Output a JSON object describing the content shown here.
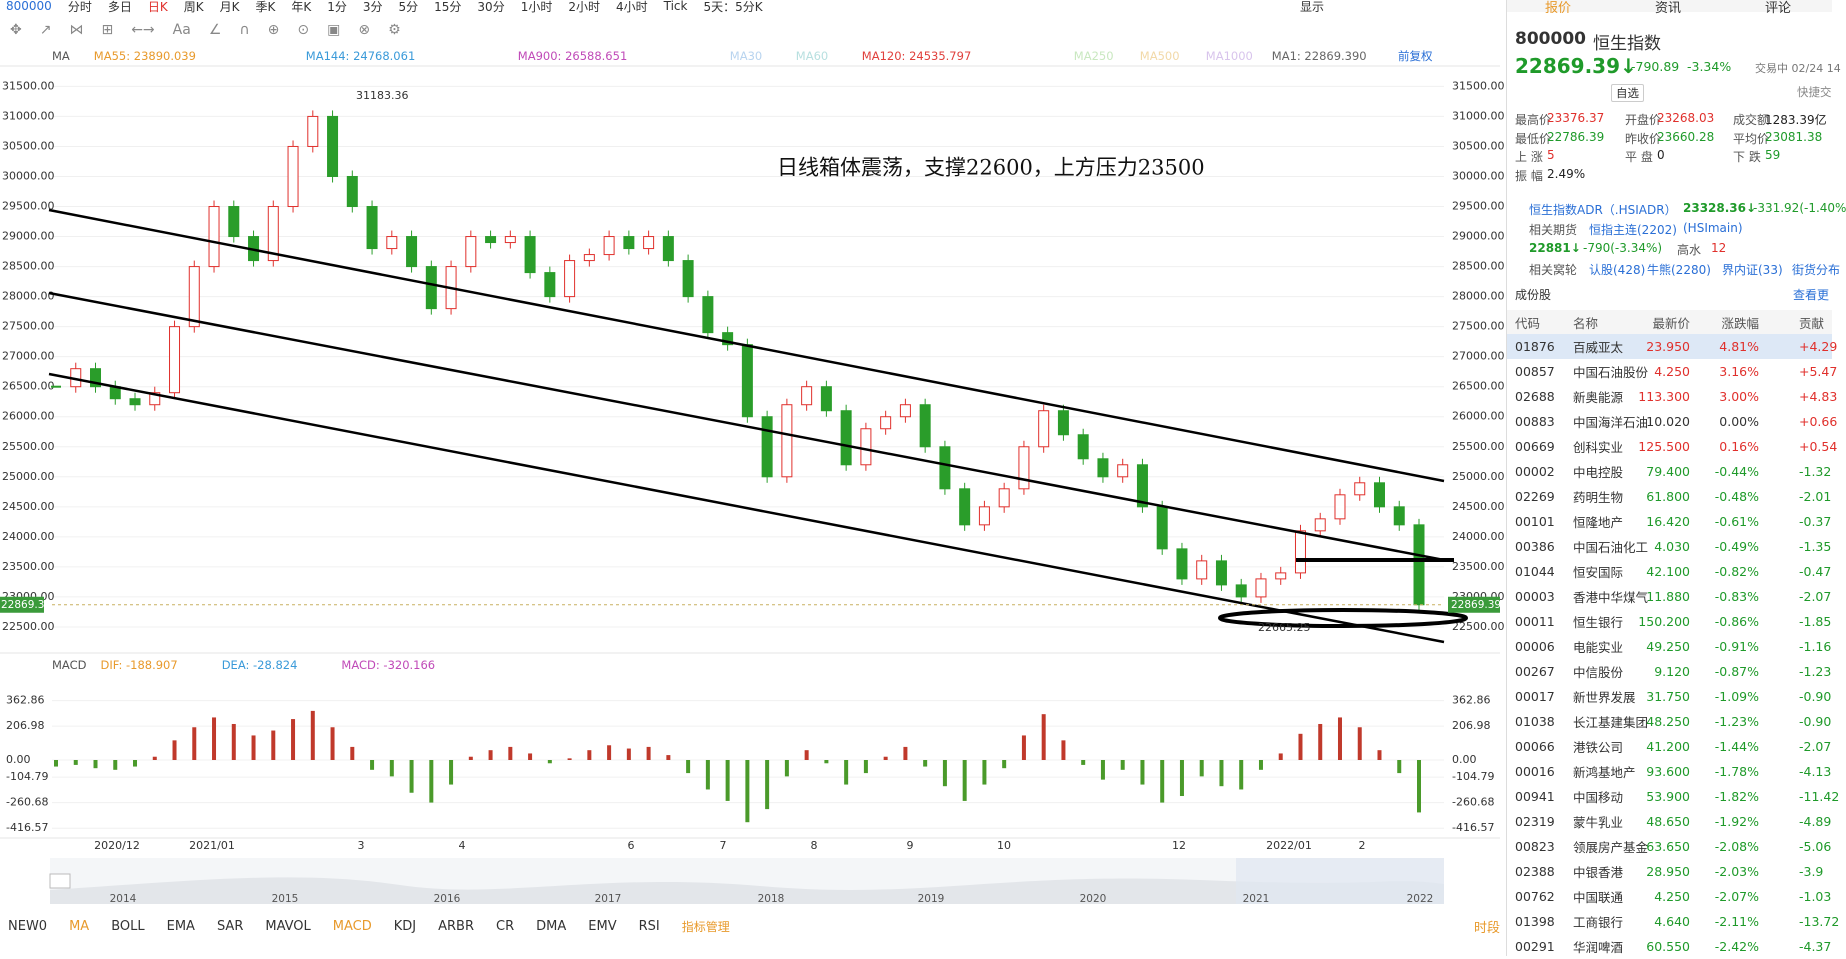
{
  "toolbar": {
    "code": "800000",
    "periods": [
      "分时",
      "多日",
      "日K",
      "周K",
      "月K",
      "季K",
      "年K",
      "1分",
      "3分",
      "5分",
      "15分",
      "30分",
      "1小时",
      "2小时",
      "4小时",
      "Tick",
      "5天：5分K"
    ],
    "active": "日K",
    "display": "显示"
  },
  "ma_legend": {
    "label": "MA",
    "items": [
      {
        "text": "MA55: 23890.039",
        "color": "#e89a2c"
      },
      {
        "text": "MA144: 24768.061",
        "color": "#3a9ad9"
      },
      {
        "text": "MA900: 26588.651",
        "color": "#c04ab8"
      },
      {
        "text": "MA30",
        "color": "#b8d4ef"
      },
      {
        "text": "MA60",
        "color": "#b8e0e0"
      },
      {
        "text": "MA120: 24535.797",
        "color": "#e0403c"
      },
      {
        "text": "MA250",
        "color": "#c9e8c0"
      },
      {
        "text": "MA500",
        "color": "#f2d9a8"
      },
      {
        "text": "MA1000",
        "color": "#d8c4ec"
      },
      {
        "text": "MA1: 22869.390",
        "color": "#666666"
      }
    ],
    "adjust": "前复权"
  },
  "price_chart": {
    "yticks": [
      {
        "value": 31500,
        "label": "31500.00"
      },
      {
        "value": 31000,
        "label": "31000.00"
      },
      {
        "value": 30500,
        "label": "30500.00"
      },
      {
        "value": 30000,
        "label": "30000.00"
      },
      {
        "value": 29500,
        "label": "29500.00"
      },
      {
        "value": 29000,
        "label": "29000.00"
      },
      {
        "value": 28500,
        "label": "28500.00"
      },
      {
        "value": 28000,
        "label": "28000.00"
      },
      {
        "value": 27500,
        "label": "27500.00"
      },
      {
        "value": 27000,
        "label": "27000.00"
      },
      {
        "value": 26500,
        "label": "26500.00"
      },
      {
        "value": 26000,
        "label": "26000.00"
      },
      {
        "value": 25500,
        "label": "25500.00"
      },
      {
        "value": 25000,
        "label": "25000.00"
      },
      {
        "value": 24500,
        "label": "24500.00"
      },
      {
        "value": 24000,
        "label": "24000.00"
      },
      {
        "value": 23500,
        "label": "23500.00"
      },
      {
        "value": 23000,
        "label": "23000.00"
      },
      {
        "value": 22500,
        "label": "22500.00"
      }
    ],
    "closes": [
      26500,
      26800,
      26500,
      26300,
      26200,
      26400,
      27500,
      28500,
      29500,
      29000,
      28600,
      29500,
      30500,
      31000,
      30000,
      29500,
      28800,
      29000,
      28500,
      27800,
      28500,
      29000,
      28900,
      29000,
      28400,
      28000,
      28600,
      28700,
      29000,
      28800,
      29000,
      28600,
      28000,
      27400,
      27200,
      26000,
      25000,
      26200,
      26500,
      26100,
      25200,
      25800,
      26000,
      26200,
      25500,
      24800,
      24200,
      24500,
      24800,
      25500,
      26100,
      25700,
      25300,
      25000,
      25200,
      24500,
      23800,
      23300,
      23600,
      23200,
      23000,
      23300,
      23400,
      24100,
      24300,
      24700,
      24900,
      24500,
      24200,
      22869.39
    ],
    "current_price": 22869.39,
    "high_label": 31183.36,
    "low_label": 22665.25,
    "annotation": "日线箱体震荡，支撑22600，上方压力23500",
    "x_labels": [
      "2020/12",
      "2021/01",
      "3",
      "4",
      "6",
      "7",
      "8",
      "9",
      "10",
      "12",
      "2022/01",
      "2"
    ]
  },
  "macd": {
    "label": "MACD",
    "items": [
      {
        "text": "DIF: -188.907",
        "color": "#e89a2c"
      },
      {
        "text": "DEA: -28.824",
        "color": "#3a9ad9"
      },
      {
        "text": "MACD: -320.166",
        "color": "#c04ab8"
      }
    ],
    "yticks": [
      362.86,
      206.98,
      {
        "value": 0,
        "label": "0.00"
      },
      -104.79,
      -260.68,
      -416.57
    ],
    "hist": [
      -40,
      -30,
      -50,
      -60,
      -40,
      20,
      120,
      200,
      260,
      220,
      150,
      180,
      250,
      300,
      200,
      80,
      -60,
      -100,
      -200,
      -260,
      -150,
      20,
      60,
      80,
      40,
      -20,
      10,
      60,
      90,
      70,
      80,
      30,
      -80,
      -180,
      -250,
      -380,
      -300,
      -100,
      60,
      -20,
      -150,
      -80,
      20,
      80,
      -40,
      -160,
      -250,
      -150,
      -50,
      150,
      280,
      120,
      -30,
      -120,
      -60,
      -150,
      -260,
      -220,
      -100,
      -160,
      -180,
      -60,
      40,
      160,
      220,
      260,
      200,
      60,
      -80,
      -320.166
    ]
  },
  "overview_years": [
    "2014",
    "2015",
    "2016",
    "2017",
    "2018",
    "2019",
    "2020",
    "2021",
    "2022"
  ],
  "indicator_tabs": [
    "NEW0",
    "MA",
    "BOLL",
    "EMA",
    "SAR",
    "MAVOL",
    "MACD",
    "KDJ",
    "ARBR",
    "CR",
    "DMA",
    "EMV",
    "RSI",
    "指标管理"
  ],
  "active_tabs": [
    "MA",
    "MACD"
  ],
  "period_button": "时段",
  "quote": {
    "tabs": [
      "报价",
      "资讯",
      "评论"
    ],
    "code": "800000",
    "name": "恒生指数",
    "price": "22869.39↓",
    "change": "-790.89",
    "change_pct": "-3.34%",
    "status": "交易中 02/24 14",
    "watch": "自选",
    "quick": "快捷交",
    "stats": [
      [
        "最高价",
        "23376.37",
        "开盘价",
        "23268.03",
        "成交额",
        "1283.39亿"
      ],
      [
        "最低价",
        "22786.39",
        "昨收价",
        "23660.28",
        "平均价",
        "23081.38"
      ],
      [
        "上 涨",
        "5",
        "平 盘",
        "0",
        "下 跌",
        "59"
      ],
      [
        "振 幅",
        "2.49%"
      ]
    ],
    "adr": {
      "label": "恒生指数ADR（.HSIADR）",
      "price": "23328.36↓",
      "change": "-331.92(-1.40%"
    },
    "futures": {
      "label": "相关期货",
      "name": "恒指主连(2202)",
      "code": "(HSImain)",
      "price": "22881↓",
      "change": "-790(-3.34%)",
      "premium_label": "高水",
      "premium": "12"
    },
    "warrants": {
      "label": "相关窝轮",
      "items": [
        "认股(428)",
        "牛熊(2280)",
        "界内证(33)",
        "街货分布"
      ]
    }
  },
  "constituents": {
    "title": "成份股",
    "more": "查看更",
    "columns": [
      "代码",
      "名称",
      "最新价",
      "涨跌幅",
      "贡献"
    ],
    "rows": [
      [
        "01876",
        "百威亚太",
        "23.950",
        "4.81%",
        "+4.29"
      ],
      [
        "00857",
        "中国石油股份",
        "4.250",
        "3.16%",
        "+5.47"
      ],
      [
        "02688",
        "新奥能源",
        "113.300",
        "3.00%",
        "+4.83"
      ],
      [
        "00883",
        "中国海洋石油",
        "10.020",
        "0.00%",
        "+0.66"
      ],
      [
        "00669",
        "创科实业",
        "125.500",
        "0.16%",
        "+0.54"
      ],
      [
        "00002",
        "中电控股",
        "79.400",
        "-0.44%",
        "-1.32"
      ],
      [
        "02269",
        "药明生物",
        "61.800",
        "-0.48%",
        "-2.01"
      ],
      [
        "00101",
        "恒隆地产",
        "16.420",
        "-0.61%",
        "-0.37"
      ],
      [
        "00386",
        "中国石油化工",
        "4.030",
        "-0.49%",
        "-1.35"
      ],
      [
        "01044",
        "恒安国际",
        "42.100",
        "-0.82%",
        "-0.47"
      ],
      [
        "00003",
        "香港中华煤气",
        "11.880",
        "-0.83%",
        "-2.07"
      ],
      [
        "00011",
        "恒生银行",
        "150.200",
        "-0.86%",
        "-1.85"
      ],
      [
        "00006",
        "电能实业",
        "49.250",
        "-0.91%",
        "-1.16"
      ],
      [
        "00267",
        "中信股份",
        "9.120",
        "-0.87%",
        "-1.23"
      ],
      [
        "00017",
        "新世界发展",
        "31.750",
        "-1.09%",
        "-0.90"
      ],
      [
        "01038",
        "长江基建集团",
        "48.250",
        "-1.23%",
        "-0.90"
      ],
      [
        "00066",
        "港铁公司",
        "41.200",
        "-1.44%",
        "-2.07"
      ],
      [
        "00016",
        "新鸿基地产",
        "93.600",
        "-1.78%",
        "-4.13"
      ],
      [
        "00941",
        "中国移动",
        "53.900",
        "-1.82%",
        "-11.42"
      ],
      [
        "02319",
        "蒙牛乳业",
        "48.650",
        "-1.92%",
        "-4.89"
      ],
      [
        "00823",
        "领展房产基金",
        "63.650",
        "-2.08%",
        "-5.06"
      ],
      [
        "02388",
        "中银香港",
        "28.950",
        "-2.03%",
        "-3.9"
      ],
      [
        "00762",
        "中国联通",
        "4.250",
        "-2.07%",
        "-1.03"
      ],
      [
        "01398",
        "工商银行",
        "4.640",
        "-2.11%",
        "-13.72"
      ],
      [
        "00291",
        "华润啤酒",
        "60.550",
        "-2.42%",
        "-4.37"
      ]
    ]
  }
}
